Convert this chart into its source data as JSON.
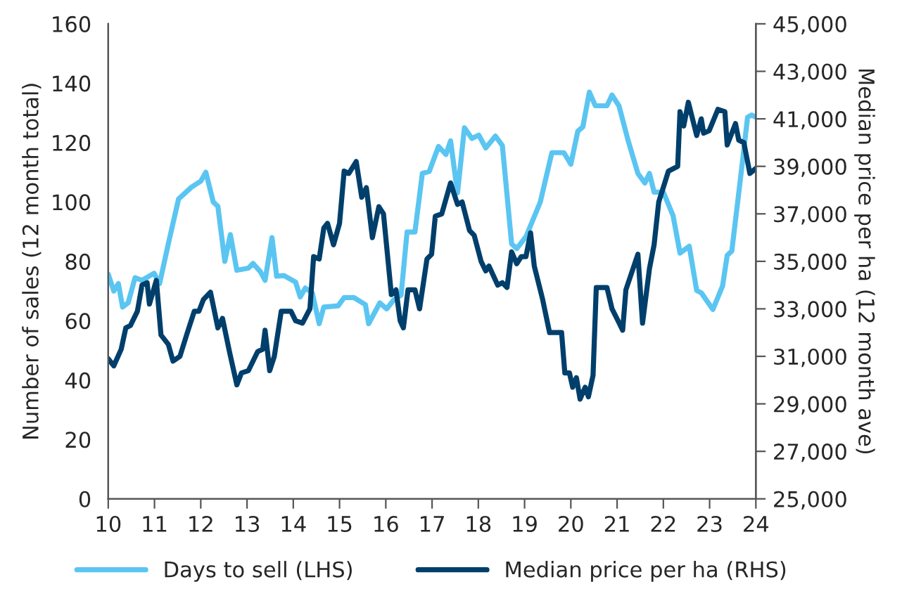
{
  "chart_data": {
    "type": "line",
    "ylabel": "Number of sales (12 month total)",
    "y2label": "Median price per ha (12 month ave)",
    "xlim": [
      10,
      24
    ],
    "xticks": [
      10,
      11,
      12,
      13,
      14,
      15,
      16,
      17,
      18,
      19,
      20,
      21,
      22,
      23,
      24
    ],
    "ylim": [
      0,
      160
    ],
    "yticks": [
      0,
      20,
      40,
      60,
      80,
      100,
      120,
      140,
      160
    ],
    "y2lim": [
      25000,
      45000
    ],
    "y2ticks": [
      {
        "value": 25000,
        "label": "25,000"
      },
      {
        "value": 27000,
        "label": "27,000"
      },
      {
        "value": 29000,
        "label": "29,000"
      },
      {
        "value": 31000,
        "label": "31,000"
      },
      {
        "value": 33000,
        "label": "33,000"
      },
      {
        "value": 35000,
        "label": "35,000"
      },
      {
        "value": 37000,
        "label": "37,000"
      },
      {
        "value": 39000,
        "label": "39,000"
      },
      {
        "value": 41000,
        "label": "41,000"
      },
      {
        "value": 43000,
        "label": "43,000"
      },
      {
        "value": 45000,
        "label": "45,000"
      }
    ],
    "grid": false,
    "legend": "bottom",
    "line_style": "solid",
    "marker": "none",
    "series": [
      {
        "name": "Days to sell (LHS)",
        "color": "#5bc5f2",
        "x": [
          10.0,
          10.12,
          10.22,
          10.31,
          10.43,
          10.58,
          10.73,
          10.99,
          11.11,
          11.3,
          11.52,
          11.8,
          12.0,
          12.11,
          12.27,
          12.37,
          12.52,
          12.64,
          12.78,
          13.03,
          13.13,
          13.29,
          13.39,
          13.54,
          13.64,
          13.8,
          14.05,
          14.15,
          14.26,
          14.41,
          14.56,
          14.66,
          14.97,
          15.1,
          15.31,
          15.56,
          15.63,
          15.87,
          16.02,
          16.17,
          16.33,
          16.46,
          16.63,
          16.79,
          16.94,
          17.14,
          17.3,
          17.4,
          17.55,
          17.7,
          17.86,
          18.01,
          18.16,
          18.37,
          18.52,
          18.72,
          18.83,
          19.03,
          19.34,
          19.59,
          19.85,
          20.0,
          20.15,
          20.26,
          20.4,
          20.53,
          20.78,
          20.89,
          21.04,
          21.24,
          21.45,
          21.6,
          21.7,
          21.8,
          22.0,
          22.21,
          22.36,
          22.56,
          22.72,
          22.82,
          23.07,
          23.28,
          23.38,
          23.48,
          23.68,
          23.82,
          23.91,
          24.0
        ],
        "values": [
          75.7,
          70,
          72.5,
          64.6,
          66,
          74.5,
          73.6,
          76,
          72.5,
          86,
          101,
          105,
          107,
          110,
          100,
          98.5,
          80,
          89,
          77,
          77.7,
          79.3,
          76.5,
          73.6,
          88,
          75,
          75.2,
          73,
          68,
          71,
          69.4,
          59,
          64.6,
          65,
          67.8,
          67.8,
          65.4,
          59,
          66,
          64,
          67,
          68.6,
          89.9,
          89.9,
          109.6,
          110.3,
          118.7,
          116,
          120.6,
          103,
          125,
          121.4,
          122.5,
          118.2,
          122.2,
          119,
          85.9,
          84.3,
          88.3,
          100,
          116.6,
          116.6,
          112.7,
          123.8,
          125.3,
          137,
          132.4,
          132.4,
          136,
          132.4,
          120.6,
          109.6,
          106.4,
          109.6,
          103.3,
          103.3,
          95.4,
          82.8,
          85.1,
          70.2,
          69.4,
          63.8,
          71.7,
          82,
          83.5,
          109.6,
          128.5,
          129.3,
          128.5
        ]
      },
      {
        "name": "Median price per ha (RHS)",
        "color": "#003f6b",
        "axis": "y2",
        "x": [
          10.0,
          10.12,
          10.28,
          10.38,
          10.48,
          10.63,
          10.73,
          10.84,
          10.89,
          11.04,
          11.14,
          11.3,
          11.4,
          11.55,
          11.71,
          11.86,
          11.96,
          12.06,
          12.21,
          12.37,
          12.47,
          12.62,
          12.78,
          12.88,
          13.03,
          13.23,
          13.34,
          13.39,
          13.49,
          13.59,
          13.74,
          13.95,
          14.05,
          14.2,
          14.36,
          14.44,
          14.56,
          14.66,
          14.74,
          14.87,
          15.0,
          15.1,
          15.2,
          15.36,
          15.48,
          15.58,
          15.71,
          15.85,
          15.95,
          16.12,
          16.22,
          16.31,
          16.38,
          16.48,
          16.63,
          16.73,
          16.89,
          16.99,
          17.07,
          17.21,
          17.4,
          17.55,
          17.65,
          17.81,
          17.91,
          18.06,
          18.16,
          18.23,
          18.42,
          18.52,
          18.62,
          18.72,
          18.83,
          18.93,
          19.03,
          19.13,
          19.21,
          19.39,
          19.54,
          19.8,
          19.87,
          19.97,
          20.04,
          20.12,
          20.2,
          20.31,
          20.38,
          20.48,
          20.55,
          20.78,
          20.89,
          21.02,
          21.12,
          21.19,
          21.45,
          21.55,
          21.7,
          21.8,
          21.9,
          22.11,
          22.31,
          22.36,
          22.44,
          22.54,
          22.72,
          22.82,
          22.87,
          22.99,
          23.18,
          23.33,
          23.38,
          23.56,
          23.63,
          23.74,
          23.87,
          23.99
        ],
        "values": [
          30900,
          30600,
          31300,
          32200,
          32300,
          32900,
          34000,
          34100,
          33200,
          34200,
          31900,
          31500,
          30800,
          31000,
          32000,
          32900,
          32900,
          33400,
          33700,
          32200,
          32600,
          31200,
          29800,
          30300,
          30400,
          31200,
          31300,
          32100,
          30400,
          31000,
          32900,
          32900,
          32500,
          32400,
          33000,
          35200,
          35100,
          36400,
          36600,
          35700,
          36600,
          38800,
          38700,
          39200,
          37700,
          38100,
          36000,
          37300,
          37000,
          33600,
          33800,
          32500,
          32200,
          33800,
          33800,
          33000,
          35100,
          35300,
          36900,
          37000,
          38300,
          37400,
          37500,
          36300,
          36100,
          35000,
          34600,
          34800,
          34000,
          34100,
          33900,
          35400,
          34900,
          35200,
          35200,
          36200,
          34800,
          33400,
          32000,
          32000,
          30300,
          30300,
          29700,
          30100,
          29200,
          29700,
          29300,
          30200,
          33900,
          33900,
          33000,
          32500,
          32100,
          33800,
          35300,
          32400,
          34700,
          35700,
          37500,
          38800,
          39000,
          41300,
          40700,
          41700,
          40300,
          41000,
          40400,
          40500,
          41400,
          41300,
          39900,
          40800,
          40100,
          40000,
          38700,
          38900
        ]
      }
    ]
  }
}
